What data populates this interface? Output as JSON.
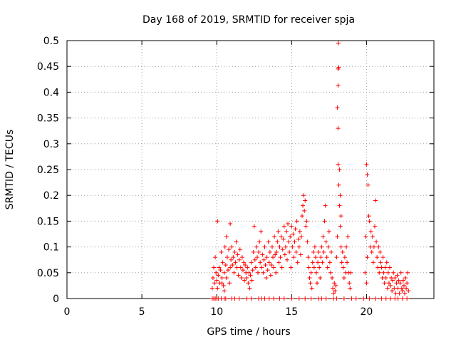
{
  "chart_data": {
    "type": "scatter",
    "title": "Day 168 of 2019, SRMTID for receiver spja",
    "xlabel": "GPS time / hours",
    "ylabel": "SRMTID / TECUs",
    "xlim": [
      0,
      24.5
    ],
    "ylim": [
      0,
      0.5
    ],
    "x_ticks": [
      0,
      5,
      10,
      15,
      20
    ],
    "x_tick_labels": [
      "0",
      "5",
      "10",
      "15",
      "20"
    ],
    "y_ticks": [
      0,
      0.05,
      0.1,
      0.15,
      0.2,
      0.25,
      0.3,
      0.35,
      0.4,
      0.45,
      0.5
    ],
    "y_tick_labels": [
      "0",
      "0.05",
      "0.1",
      "0.15",
      "0.2",
      "0.25",
      "0.3",
      "0.35",
      "0.4",
      "0.45",
      "0.5"
    ],
    "grid": true,
    "marker": "plus",
    "color": "#ff0000",
    "series": [
      {
        "name": "SRMTID",
        "points": [
          [
            9.7,
            0
          ],
          [
            9.8,
            0
          ],
          [
            9.9,
            0
          ],
          [
            10.0,
            0
          ],
          [
            10.1,
            0
          ],
          [
            10.3,
            0
          ],
          [
            10.5,
            0
          ],
          [
            10.6,
            0
          ],
          [
            11.0,
            0
          ],
          [
            11.2,
            0
          ],
          [
            11.5,
            0
          ],
          [
            12.0,
            0
          ],
          [
            12.3,
            0
          ],
          [
            12.8,
            0
          ],
          [
            13.0,
            0
          ],
          [
            13.2,
            0
          ],
          [
            13.5,
            0
          ],
          [
            13.8,
            0
          ],
          [
            14.2,
            0
          ],
          [
            14.5,
            0
          ],
          [
            15.0,
            0
          ],
          [
            15.5,
            0
          ],
          [
            15.9,
            0
          ],
          [
            16.3,
            0
          ],
          [
            16.8,
            0
          ],
          [
            17.0,
            0
          ],
          [
            17.3,
            0
          ],
          [
            17.8,
            0
          ],
          [
            18.0,
            0
          ],
          [
            18.5,
            0
          ],
          [
            19.0,
            0
          ],
          [
            19.3,
            0
          ],
          [
            19.8,
            0
          ],
          [
            20.2,
            0
          ],
          [
            20.6,
            0
          ],
          [
            21.0,
            0
          ],
          [
            21.3,
            0
          ],
          [
            21.6,
            0
          ],
          [
            21.9,
            0
          ],
          [
            22.1,
            0
          ],
          [
            22.4,
            0
          ],
          [
            22.7,
            0
          ],
          [
            9.7,
            0.02
          ],
          [
            9.75,
            0.04
          ],
          [
            9.8,
            0.06
          ],
          [
            9.85,
            0.03
          ],
          [
            9.9,
            0.08
          ],
          [
            9.95,
            0.05
          ],
          [
            10.0,
            0.035
          ],
          [
            10.05,
            0.02
          ],
          [
            10.1,
            0.045
          ],
          [
            10.15,
            0.06
          ],
          [
            10.2,
            0.03
          ],
          [
            10.25,
            0.055
          ],
          [
            10.3,
            0.09
          ],
          [
            10.35,
            0.04
          ],
          [
            10.4,
            0.07
          ],
          [
            10.45,
            0.025
          ],
          [
            10.5,
            0.05
          ],
          [
            10.55,
            0.1
          ],
          [
            10.6,
            0.065
          ],
          [
            10.65,
            0.04
          ],
          [
            10.7,
            0.08
          ],
          [
            10.75,
            0.055
          ],
          [
            10.8,
            0.095
          ],
          [
            10.85,
            0.03
          ],
          [
            10.9,
            0.06
          ],
          [
            10.95,
            0.075
          ],
          [
            10.05,
            0.15
          ],
          [
            10.35,
            0.03
          ],
          [
            10.5,
            0.015
          ],
          [
            10.65,
            0.12
          ],
          [
            10.9,
            0.145
          ],
          [
            11.0,
            0.1
          ],
          [
            11.05,
            0.065
          ],
          [
            11.1,
            0.08
          ],
          [
            11.15,
            0.05
          ],
          [
            11.2,
            0.09
          ],
          [
            11.25,
            0.07
          ],
          [
            11.3,
            0.11
          ],
          [
            11.35,
            0.06
          ],
          [
            11.4,
            0.085
          ],
          [
            11.45,
            0.045
          ],
          [
            11.5,
            0.075
          ],
          [
            11.55,
            0.095
          ],
          [
            11.6,
            0.06
          ],
          [
            11.65,
            0.04
          ],
          [
            11.7,
            0.08
          ],
          [
            11.75,
            0.055
          ],
          [
            11.8,
            0.07
          ],
          [
            11.85,
            0.035
          ],
          [
            11.9,
            0.065
          ],
          [
            11.95,
            0.05
          ],
          [
            12.0,
            0.04
          ],
          [
            12.05,
            0.06
          ],
          [
            12.1,
            0.03
          ],
          [
            12.15,
            0.05
          ],
          [
            12.2,
            0.02
          ],
          [
            12.25,
            0.045
          ],
          [
            12.3,
            0.07
          ],
          [
            12.35,
            0.035
          ],
          [
            12.4,
            0.055
          ],
          [
            12.45,
            0.09
          ],
          [
            12.5,
            0.14
          ],
          [
            12.55,
            0.075
          ],
          [
            12.6,
            0.06
          ],
          [
            12.65,
            0.1
          ],
          [
            12.7,
            0.08
          ],
          [
            12.75,
            0.05
          ],
          [
            12.8,
            0.09
          ],
          [
            12.85,
            0.11
          ],
          [
            12.9,
            0.07
          ],
          [
            12.95,
            0.13
          ],
          [
            13.0,
            0.06
          ],
          [
            13.05,
            0.085
          ],
          [
            13.1,
            0.05
          ],
          [
            13.15,
            0.075
          ],
          [
            13.2,
            0.1
          ],
          [
            13.25,
            0.065
          ],
          [
            13.3,
            0.04
          ],
          [
            13.35,
            0.08
          ],
          [
            13.4,
            0.055
          ],
          [
            13.45,
            0.11
          ],
          [
            13.5,
            0.07
          ],
          [
            13.55,
            0.09
          ],
          [
            13.6,
            0.045
          ],
          [
            13.65,
            0.065
          ],
          [
            13.7,
            0.1
          ],
          [
            13.75,
            0.08
          ],
          [
            13.8,
            0.06
          ],
          [
            13.85,
            0.12
          ],
          [
            13.9,
            0.085
          ],
          [
            13.95,
            0.05
          ],
          [
            14.0,
            0.09
          ],
          [
            14.05,
            0.11
          ],
          [
            14.1,
            0.13
          ],
          [
            14.15,
            0.07
          ],
          [
            14.2,
            0.1
          ],
          [
            14.25,
            0.08
          ],
          [
            14.3,
            0.12
          ],
          [
            14.35,
            0.06
          ],
          [
            14.4,
            0.095
          ],
          [
            14.45,
            0.115
          ],
          [
            14.5,
            0.14
          ],
          [
            14.55,
            0.085
          ],
          [
            14.6,
            0.1
          ],
          [
            14.65,
            0.13
          ],
          [
            14.7,
            0.075
          ],
          [
            14.75,
            0.145
          ],
          [
            14.8,
            0.11
          ],
          [
            14.85,
            0.09
          ],
          [
            14.9,
            0.12
          ],
          [
            14.95,
            0.06
          ],
          [
            15.0,
            0.14
          ],
          [
            15.05,
            0.1
          ],
          [
            15.1,
            0.125
          ],
          [
            15.15,
            0.08
          ],
          [
            15.2,
            0.11
          ],
          [
            15.25,
            0.135
          ],
          [
            15.3,
            0.09
          ],
          [
            15.35,
            0.15
          ],
          [
            15.4,
            0.07
          ],
          [
            15.45,
            0.115
          ],
          [
            15.5,
            0.1
          ],
          [
            15.55,
            0.13
          ],
          [
            15.6,
            0.085
          ],
          [
            15.65,
            0.12
          ],
          [
            15.7,
            0.16
          ],
          [
            15.75,
            0.18
          ],
          [
            15.8,
            0.2
          ],
          [
            15.85,
            0.17
          ],
          [
            15.9,
            0.19
          ],
          [
            15.95,
            0.14
          ],
          [
            16.0,
            0.15
          ],
          [
            16.05,
            0.11
          ],
          [
            16.1,
            0.08
          ],
          [
            16.15,
            0.06
          ],
          [
            16.2,
            0.04
          ],
          [
            16.25,
            0.03
          ],
          [
            16.3,
            0.05
          ],
          [
            16.35,
            0.02
          ],
          [
            16.4,
            0.07
          ],
          [
            16.45,
            0.09
          ],
          [
            16.5,
            0.06
          ],
          [
            16.55,
            0.1
          ],
          [
            16.6,
            0.08
          ],
          [
            16.65,
            0.05
          ],
          [
            16.7,
            0.03
          ],
          [
            16.75,
            0.07
          ],
          [
            16.8,
            0.09
          ],
          [
            16.85,
            0.06
          ],
          [
            16.9,
            0.04
          ],
          [
            16.95,
            0.08
          ],
          [
            17.0,
            0.1
          ],
          [
            17.05,
            0.07
          ],
          [
            17.1,
            0.12
          ],
          [
            17.15,
            0.09
          ],
          [
            17.2,
            0.15
          ],
          [
            17.25,
            0.18
          ],
          [
            17.3,
            0.11
          ],
          [
            17.35,
            0.08
          ],
          [
            17.4,
            0.06
          ],
          [
            17.45,
            0.1
          ],
          [
            17.5,
            0.13
          ],
          [
            17.55,
            0.07
          ],
          [
            17.6,
            0.05
          ],
          [
            17.65,
            0.09
          ],
          [
            17.7,
            0.04
          ],
          [
            17.75,
            0.02
          ],
          [
            17.8,
            0.01
          ],
          [
            17.85,
            0.03
          ],
          [
            17.9,
            0.015
          ],
          [
            17.95,
            0.025
          ],
          [
            18.0,
            0.08
          ],
          [
            18.05,
            0.12
          ],
          [
            18.1,
            0.26
          ],
          [
            18.15,
            0.22
          ],
          [
            18.2,
            0.18
          ],
          [
            18.25,
            0.14
          ],
          [
            18.3,
            0.1
          ],
          [
            18.35,
            0.07
          ],
          [
            18.4,
            0.09
          ],
          [
            18.45,
            0.06
          ],
          [
            18.5,
            0.04
          ],
          [
            18.55,
            0.08
          ],
          [
            18.6,
            0.05
          ],
          [
            18.65,
            0.1
          ],
          [
            18.7,
            0.07
          ],
          [
            18.75,
            0.12
          ],
          [
            18.8,
            0.05
          ],
          [
            18.85,
            0.03
          ],
          [
            18.9,
            0.02
          ],
          [
            18.95,
            0.05
          ],
          [
            18.12,
            0.495
          ],
          [
            18.1,
            0.445
          ],
          [
            18.15,
            0.448
          ],
          [
            18.1,
            0.413
          ],
          [
            18.05,
            0.37
          ],
          [
            18.1,
            0.33
          ],
          [
            18.2,
            0.25
          ],
          [
            18.25,
            0.2
          ],
          [
            18.3,
            0.16
          ],
          [
            20.0,
            0.26
          ],
          [
            20.05,
            0.24
          ],
          [
            20.1,
            0.22
          ],
          [
            20.15,
            0.16
          ],
          [
            20.2,
            0.15
          ],
          [
            20.25,
            0.1
          ],
          [
            20.3,
            0.13
          ],
          [
            20.35,
            0.09
          ],
          [
            20.4,
            0.12
          ],
          [
            20.45,
            0.07
          ],
          [
            20.5,
            0.1
          ],
          [
            20.55,
            0.14
          ],
          [
            20.6,
            0.19
          ],
          [
            20.65,
            0.11
          ],
          [
            20.7,
            0.08
          ],
          [
            20.75,
            0.06
          ],
          [
            20.8,
            0.1
          ],
          [
            20.85,
            0.05
          ],
          [
            20.9,
            0.09
          ],
          [
            20.95,
            0.07
          ],
          [
            19.9,
            0.05
          ],
          [
            19.95,
            0.12
          ],
          [
            20.0,
            0.03
          ],
          [
            20.05,
            0.08
          ],
          [
            21.0,
            0.06
          ],
          [
            21.05,
            0.04
          ],
          [
            21.1,
            0.08
          ],
          [
            21.15,
            0.05
          ],
          [
            21.2,
            0.03
          ],
          [
            21.25,
            0.06
          ],
          [
            21.3,
            0.04
          ],
          [
            21.35,
            0.07
          ],
          [
            21.4,
            0.02
          ],
          [
            21.45,
            0.05
          ],
          [
            21.5,
            0.03
          ],
          [
            21.55,
            0.06
          ],
          [
            21.6,
            0.025
          ],
          [
            21.65,
            0.04
          ],
          [
            21.7,
            0.015
          ],
          [
            21.75,
            0.035
          ],
          [
            21.8,
            0.05
          ],
          [
            21.85,
            0.02
          ],
          [
            21.9,
            0.04
          ],
          [
            21.95,
            0.01
          ],
          [
            22.0,
            0.03
          ],
          [
            22.05,
            0.045
          ],
          [
            22.1,
            0.02
          ],
          [
            22.15,
            0.035
          ],
          [
            22.2,
            0.01
          ],
          [
            22.25,
            0.03
          ],
          [
            22.3,
            0.05
          ],
          [
            22.35,
            0.02
          ],
          [
            22.4,
            0.015
          ],
          [
            22.45,
            0.035
          ],
          [
            22.5,
            0.025
          ],
          [
            22.55,
            0.01
          ],
          [
            22.6,
            0.04
          ],
          [
            22.65,
            0.02
          ],
          [
            22.7,
            0.03
          ],
          [
            22.75,
            0.05
          ],
          [
            22.8,
            0.015
          ]
        ]
      }
    ]
  }
}
